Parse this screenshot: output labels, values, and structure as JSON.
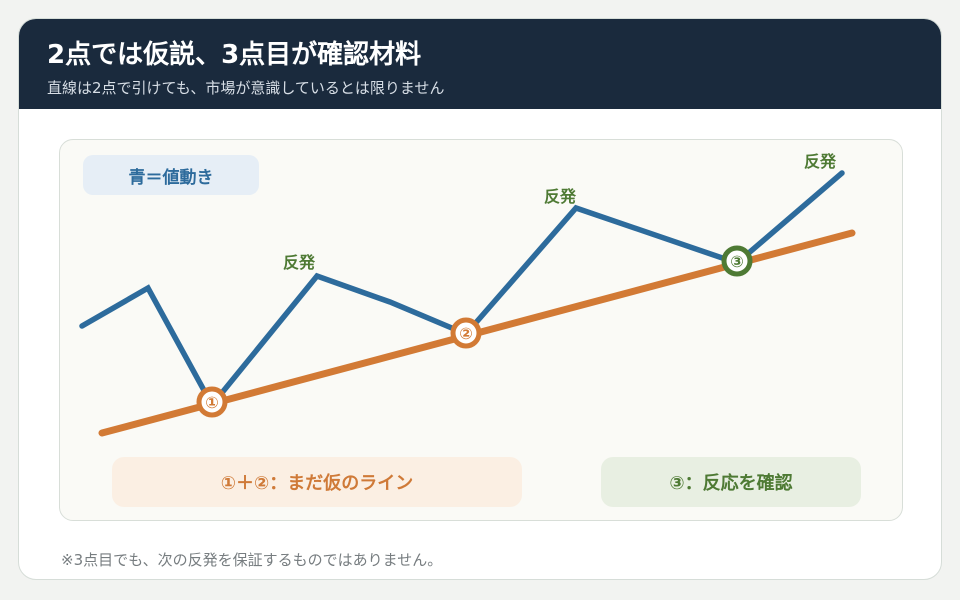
{
  "header": {
    "title": "2点では仮説、3点目が確認材料",
    "subtitle": "直線は2点で引けても、市場が意識しているとは限りません"
  },
  "legend": {
    "label": "青＝値動き"
  },
  "diagram": {
    "rebound_label": "反発",
    "points": [
      "①",
      "②",
      "③"
    ]
  },
  "pills": {
    "orange": "①＋②：まだ仮のライン",
    "green": "③：反応を確認"
  },
  "footnote": "※3点目でも、次の反発を保証するものではありません。",
  "colors": {
    "header_bg": "#1a2a3d",
    "price_line": "#2d6b9c",
    "trend_line": "#d27a35",
    "confirm_green": "#4e7a34"
  }
}
